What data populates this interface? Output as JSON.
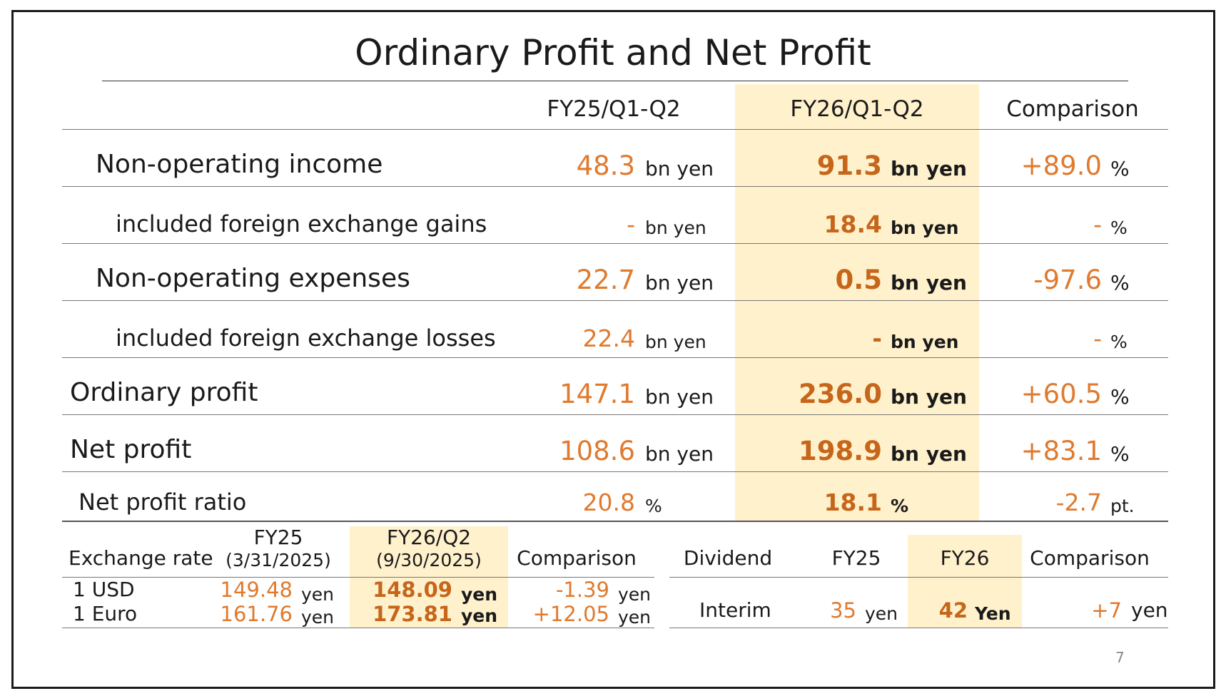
{
  "title": "Ordinary Profit and Net Profit",
  "columns": {
    "prev": "FY25/Q1-Q2",
    "curr": "FY26/Q1-Q2",
    "comp": "Comparison"
  },
  "rows": [
    {
      "label": "Non-operating income",
      "prev": "48.3",
      "prev_unit": "bn yen",
      "curr": "91.3",
      "curr_unit": "bn yen",
      "comp": "+89.0",
      "comp_unit": "%"
    },
    {
      "label": "included foreign exchange gains",
      "prev": "-",
      "prev_unit": "bn yen",
      "curr": "18.4",
      "curr_unit": "bn yen",
      "comp": "-",
      "comp_unit": "%"
    },
    {
      "label": "Non-operating expenses",
      "prev": "22.7",
      "prev_unit": "bn yen",
      "curr": "0.5",
      "curr_unit": "bn yen",
      "comp": "-97.6",
      "comp_unit": "%"
    },
    {
      "label": "included foreign exchange losses",
      "prev": "22.4",
      "prev_unit": "bn yen",
      "curr": "-",
      "curr_unit": "bn yen",
      "comp": "-",
      "comp_unit": "%"
    },
    {
      "label": "Ordinary profit",
      "prev": "147.1",
      "prev_unit": "bn yen",
      "curr": "236.0",
      "curr_unit": "bn yen",
      "comp": "+60.5",
      "comp_unit": "%"
    },
    {
      "label": "Net profit",
      "prev": "108.6",
      "prev_unit": "bn yen",
      "curr": "198.9",
      "curr_unit": "bn yen",
      "comp": "+83.1",
      "comp_unit": "%"
    },
    {
      "label": "Net profit ratio",
      "prev": "20.8",
      "prev_unit": "%",
      "curr": "18.1",
      "curr_unit": "%",
      "comp": "-2.7",
      "comp_unit": "pt."
    }
  ],
  "exchange": {
    "label": "Exchange rate",
    "prev_head1": "FY25",
    "prev_head2": "(3/31/2025)",
    "curr_head1": "FY26/Q2",
    "curr_head2": "(9/30/2025)",
    "comp_head": "Comparison",
    "rows": [
      {
        "label": "1 USD",
        "prev": "149.48",
        "prev_unit": "yen",
        "curr": "148.09",
        "curr_unit": "yen",
        "comp": "-1.39",
        "comp_unit": "yen"
      },
      {
        "label": "1 Euro",
        "prev": "161.76",
        "prev_unit": "yen",
        "curr": "173.81",
        "curr_unit": "yen",
        "comp": "+12.05",
        "comp_unit": "yen"
      }
    ]
  },
  "dividend": {
    "label": "Dividend",
    "prev_head": "FY25",
    "curr_head": "FY26",
    "comp_head": "Comparison",
    "row": {
      "label": "Interim",
      "prev": "35",
      "prev_unit": "yen",
      "curr": "42",
      "curr_unit": "Yen",
      "comp": "+7",
      "comp_unit": "yen"
    }
  },
  "page_number": "7",
  "colors": {
    "value": "#e07a2e",
    "value_current": "#c6661b",
    "highlight": "#fff1cc"
  }
}
